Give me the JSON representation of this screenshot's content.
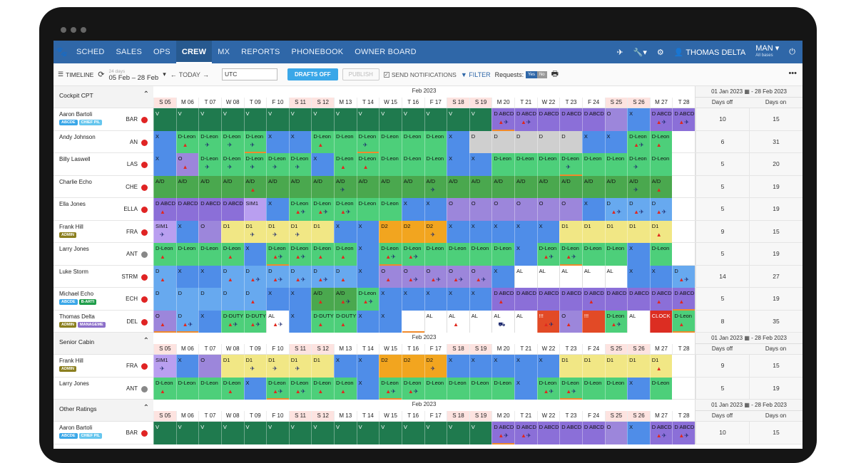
{
  "nav": {
    "items": [
      "SCHED",
      "SALES",
      "OPS",
      "CREW",
      "MX",
      "REPORTS",
      "PHONEBOOK",
      "OWNER BOARD"
    ],
    "active": "CREW",
    "user": "THOMAS DELTA",
    "base": "MAN",
    "base_sub": "All bases"
  },
  "toolbar": {
    "view": "TIMELINE",
    "days_small": "24 days",
    "date_range": "05 Feb – 28 Feb",
    "today": "TODAY",
    "tz": "UTC",
    "drafts": "DRAFTS OFF",
    "publish": "PUBLISH",
    "notify": "SEND NOTIFICATIONS",
    "filter": "FILTER",
    "requests": "Requests:",
    "yes": "Yes",
    "no": "No"
  },
  "month": "Feb 2023",
  "days": [
    "S 05",
    "M 06",
    "T 07",
    "W 08",
    "T 09",
    "F 10",
    "S 11",
    "S 12",
    "M 13",
    "T 14",
    "W 15",
    "T 16",
    "F 17",
    "S 18",
    "S 19",
    "M 20",
    "T 21",
    "W 22",
    "T 23",
    "F 24",
    "S 25",
    "S 26",
    "M 27",
    "T 28"
  ],
  "stats_range": "01 Jan 2023 ▦ - 28 Feb 2023",
  "stats_cols": [
    "Days off",
    "Days on"
  ],
  "colors": {
    "V": "#1f7a4e",
    "X": "#4f8de8",
    "D": "#67a9ef",
    "DL": "#4dcf7a",
    "AD": "#4aa84e",
    "DA": "#8b6fd8",
    "D1": "#f1e785",
    "D2": "#f2a51f",
    "O": "#9c86db",
    "AL": "#ffffff",
    "ALP": "#f7f2e6",
    "GR": "#cfcfcf",
    "R": "#e24a26",
    "CL": "#dc2d22",
    "SIM": "#b99ff0",
    "E": "#ffffff"
  },
  "sections": [
    {
      "name": "Cockpit CPT",
      "rows": [
        {
          "name": "Aaron Bartoli",
          "code": "BAR",
          "dot": "#e02424",
          "tags": [
            [
              "ABCDE",
              "ABCDE"
            ],
            [
              "CHIEF PIL",
              "CHIEF"
            ]
          ],
          "off": "10",
          "on": "15",
          "cells": "V|V|V|V|V|V|V|V|V|V|V|V|V|V|V|DA:D ABCD:tp:b|DA:D ABCD:tp|DA:D ABCD|DA:D ABCD|DA:D ABCD|O|X|DA:D ABCD:tp|DA:D ABCD:tp"
        },
        {
          "name": "Andy Johnson",
          "code": "AN",
          "dot": "#e02424",
          "tags": [],
          "off": "6",
          "on": "31",
          "cells": "X|DL:D-Leon:t|DL:D-Leon:p|DL:D-Leon:p|DL:D-Leon:p:b|X|X|DL:D-Leon:t|DL:D-Leon|DL:D-Leon:p:b|DL:D-Leon|DL:D-Leon|DL:D-Leon|X|GR:D|GR:D|GR:D|GR:D|GR:D|X|X|DL:D-Leon:tp|DL:D-Leon:t"
        },
        {
          "name": "Billy Laswell",
          "code": "LAS",
          "dot": "#e02424",
          "tags": [],
          "off": "5",
          "on": "20",
          "cells": "X|O:O:t|DL:D-Leon:p|DL:D-Leon:p|DL:D-Leon:p|DL:D-Leon:p|DL:D-Leon:p|X|DL:D-Leon:t|DL:D-Leon:t|DL:D-Leon|DL:D-Leon|DL:D-Leon|X|X|DL:D-Leon|DL:D-Leon|DL:D-Leon|DL:D-Leon:p:b|DL:D-Leon|DL:D-Leon|DL:D-Leon:p|DL:D-Leon"
        },
        {
          "name": "Charlie Echo",
          "code": "CHE",
          "dot": "#e02424",
          "tags": [],
          "off": "5",
          "on": "19",
          "cells": "AD:A/D|AD:A/D|AD:A/D|AD:A/D|AD:A/D:t|AD:A/D|AD:A/D|AD:A/D|AD:A/D:p|AD:A/D|AD:A/D|AD:A/D|AD:A/D:p|AD:A/D|AD:A/D|AD:A/D|AD:A/D|AD:A/D|AD:A/D|AD:A/D|AD:A/D|AD:A/D:p|AD:A/D:t"
        },
        {
          "name": "Ella Jones",
          "code": "ELLA",
          "dot": "#e02424",
          "tags": [],
          "off": "5",
          "on": "19",
          "cells": "DA:D ABCD:t|DA:D ABCD|DA:D ABCD|DA:D ABCD|SIM:SIM1|X|DL:D-Leon:tp|DL:D-Leon:tp|DL:D-Leon:tp|DL:D-Leon|DL:D-Leon|X|X|O|O|O|O|O|O|X|D:D:tp|D:D:tp|D:D:tp"
        },
        {
          "name": "Frank Hill",
          "code": "FRA",
          "dot": "#e02424",
          "tags": [
            [
              "ADMIN",
              "ADMIN"
            ]
          ],
          "off": "9",
          "on": "15",
          "cells": "SIM:SIM1:p|X|O|D1:D1|D1:D1:p|D1:D1:p|D1:D1:p|D1:D1|X|X|D2:D2|D2:D2|D2:D2:p|X|X|X|X|X|D1:D1|D1:D1|D1:D1|D1:D1|D1:D1:t"
        },
        {
          "name": "Larry Jones",
          "code": "ANT",
          "dot": "#888888",
          "tags": [],
          "off": "5",
          "on": "19",
          "cells": "DL:D-Leon:t|DL:D-Leon|DL:D-Leon|DL:D-Leon:t|X|DL:D-Leon:tp:b|DL:D-Leon:tp|DL:D-Leon:t|DL:D-Leon:t|X|DL:D-Leon:tp:b|DL:D-Leon:tp|DL:D-Leon|DL:D-Leon|DL:D-Leon|DL:D-Leon|X|DL:D-Leon:tp|DL:D-Leon:tp:b|DL:D-Leon|DL:D-Leon|X|DL:D-Leon"
        },
        {
          "name": "Luke Storm",
          "code": "STRM",
          "dot": "#e02424",
          "tags": [],
          "off": "14",
          "on": "27",
          "cells": "D:D:t|X|X|D:D:t|D:D:tp|D:D:tp|D:D:tp|D:D:tp|D:D:t|X|O:O:t|O:O:tp|O:O:tp|O:O:tp|O:O:tp|X|AL:AL|AL:AL|AL:AL|AL:AL|AL:AL|X|X|D:D:tp"
        },
        {
          "name": "Michael Echo",
          "code": "ECH",
          "dot": "#e02424",
          "tags": [
            [
              "ABCDE",
              "ABCDE"
            ],
            [
              "B-ARTI",
              "BARTI"
            ]
          ],
          "off": "5",
          "on": "19",
          "cells": "D:D|D:D|D:D|D:D|D:D:t|X|X|AD:A/D:t|AD:A/D:tp|DL:D-Leon:tp|X|X|X|X|X|DA:D ABCD:t|DA:D ABCD|DA:D ABCD|DA:D ABCD|DA:D ABCD:t|DA:D ABCD|DA:D ABCD|DA:D ABCD:t|DA:D ABCD:t:b"
        },
        {
          "name": "Thomas Delta",
          "code": "DEL",
          "dot": "#e02424",
          "tags": [
            [
              "ADMIN",
              "ADMIN"
            ],
            [
              "MANAGEME",
              "MGMT"
            ]
          ],
          "off": "8",
          "on": "35",
          "cells": "O:O:t:b|D:D:tp:b|X|DL:D-DUTY:tp|DL:D-DUTY:tp|AL:AL:tp|X|DL:D-DUTY:t|DL:D-DUTY:t|X|X|E::b|AL:AL|AL:AL:t|AL:AL|AL:AL:tb|AL:AL|R:!!!:tp|O:O:t|R:!!!|DL:D-Leon:tp|AL:AL|CL:CLOCK|DL:D-Leon:t:b"
        }
      ]
    },
    {
      "name": "Senior Cabin",
      "rows": [
        {
          "name": "Frank Hill",
          "code": "FRA",
          "dot": "#e02424",
          "tags": [
            [
              "ADMIN",
              "ADMIN"
            ]
          ],
          "off": "9",
          "on": "15",
          "cells": "SIM:SIM1:p|X|O|D1:D1|D1:D1:p|D1:D1:p|D1:D1:p|D1:D1|X|X|D2:D2|D2:D2|D2:D2:p|X|X|X|X|X|D1:D1|D1:D1|D1:D1|D1:D1|D1:D1:t"
        },
        {
          "name": "Larry Jones",
          "code": "ANT",
          "dot": "#888888",
          "tags": [],
          "off": "5",
          "on": "19",
          "cells": "DL:D-Leon:t|DL:D-Leon|DL:D-Leon|DL:D-Leon:t|X|DL:D-Leon:tp:b|DL:D-Leon:tp|DL:D-Leon:t|DL:D-Leon:t|X|DL:D-Leon:tp:b|DL:D-Leon:tp|DL:D-Leon|DL:D-Leon|DL:D-Leon|DL:D-Leon|X|DL:D-Leon:tp|DL:D-Leon:tp:b|DL:D-Leon|DL:D-Leon|X|DL:D-Leon"
        }
      ]
    },
    {
      "name": "Other Ratings",
      "rows": [
        {
          "name": "Aaron Bartoli",
          "code": "BAR",
          "dot": "#e02424",
          "tags": [
            [
              "ABCDE",
              "ABCDE"
            ],
            [
              "CHIEF PIL",
              "CHIEF"
            ]
          ],
          "off": "10",
          "on": "15",
          "cells": "V|V|V|V|V|V|V|V|V|V|V|V|V|V|V|DA:D ABCD:tp:b|DA:D ABCD:tp|DA:D ABCD|DA:D ABCD|DA:D ABCD|O|X|DA:D ABCD:tp|DA:D ABCD:tp"
        }
      ]
    }
  ]
}
